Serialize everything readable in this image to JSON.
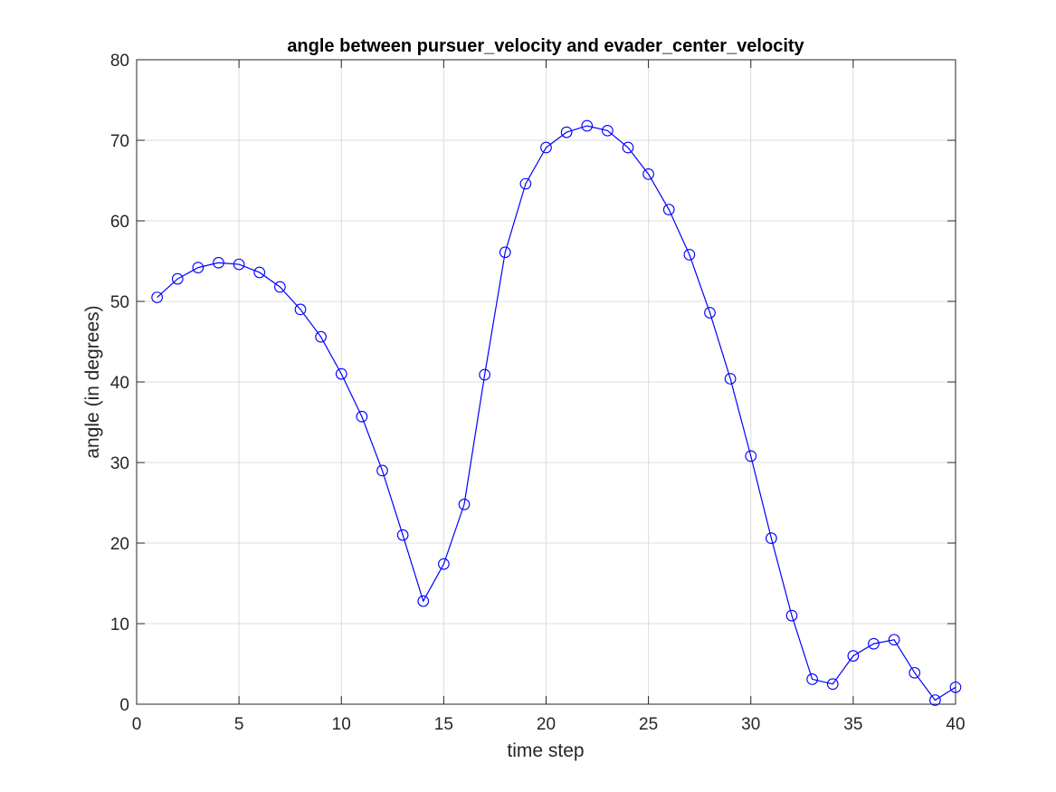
{
  "chart_data": {
    "type": "line",
    "title": "angle between pursuer_velocity and evader_center_velocity",
    "xlabel": "time step",
    "ylabel": "angle (in degrees)",
    "xlim": [
      0,
      40
    ],
    "ylim": [
      0,
      80
    ],
    "xticks": [
      0,
      5,
      10,
      15,
      20,
      25,
      30,
      35,
      40
    ],
    "yticks": [
      0,
      10,
      20,
      30,
      40,
      50,
      60,
      70,
      80
    ],
    "grid": true,
    "marker": "circle",
    "line_color": "#0000ff",
    "grid_color": "#dcdcdc",
    "axis_color": "#262626",
    "x": [
      1,
      2,
      3,
      4,
      5,
      6,
      7,
      8,
      9,
      10,
      11,
      12,
      13,
      14,
      15,
      16,
      17,
      18,
      19,
      20,
      21,
      22,
      23,
      24,
      25,
      26,
      27,
      28,
      29,
      30,
      31,
      32,
      33,
      34,
      35,
      36,
      37,
      38,
      39,
      40
    ],
    "y": [
      50.5,
      52.8,
      54.2,
      54.8,
      54.6,
      53.6,
      51.8,
      49.0,
      45.6,
      41.0,
      35.7,
      29.0,
      21.0,
      12.8,
      17.4,
      24.8,
      40.9,
      56.1,
      64.6,
      69.1,
      71.0,
      71.8,
      71.2,
      69.1,
      65.8,
      61.4,
      55.8,
      48.6,
      40.4,
      30.8,
      20.6,
      11.0,
      3.1,
      2.5,
      6.0,
      7.5,
      8.0,
      3.9,
      0.5,
      2.1
    ]
  }
}
